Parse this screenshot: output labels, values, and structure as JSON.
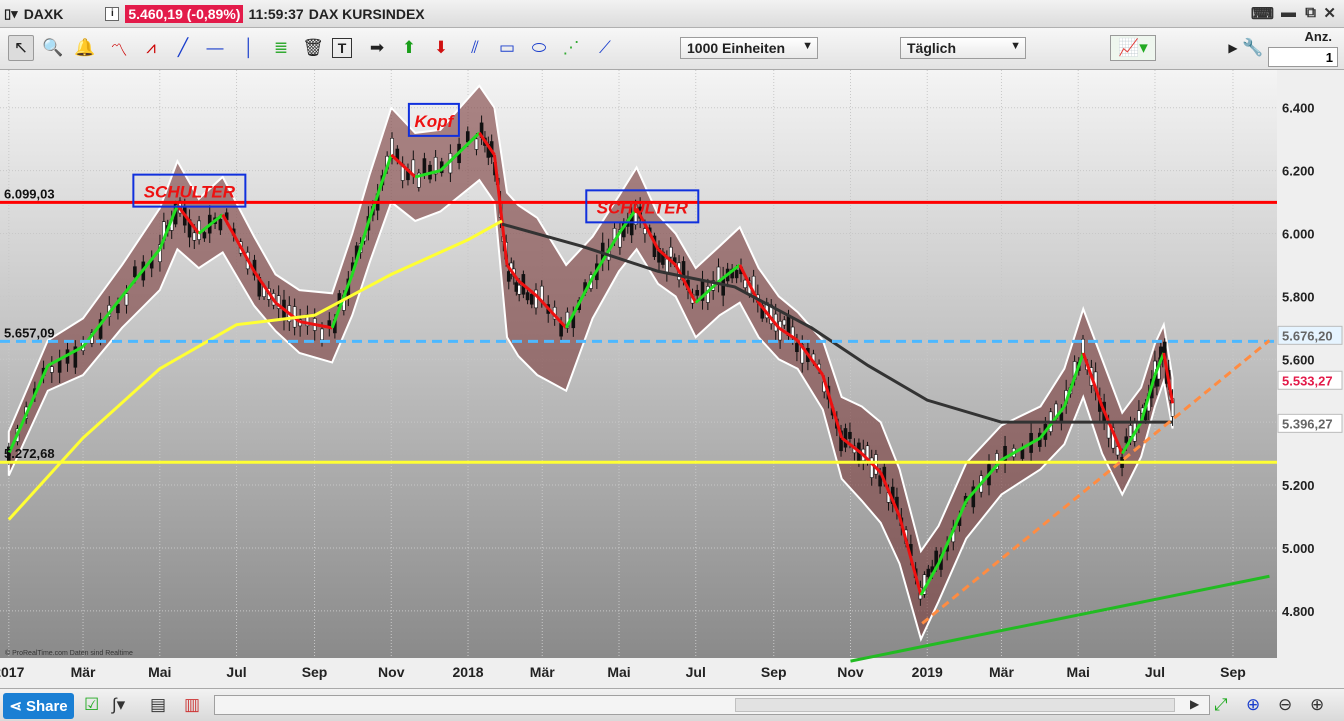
{
  "titlebar": {
    "symbol": "DAXK",
    "info_icon": "i",
    "price_change": "5.460,19 (-0,89%)",
    "time": "11:59:37",
    "name": "DAX KURSINDEX"
  },
  "toolbar": {
    "units_select": "1000 Einheiten",
    "period_select": "Täglich",
    "anz_label": "Anz.",
    "anz_value": "1"
  },
  "bottombar": {
    "share_label": "Share",
    "copyright": "© ProRealTime.com  Daten sind Realtime"
  },
  "colors": {
    "resistance": "#ff0000",
    "support": "#ffff33",
    "neckline": "#4db8ff",
    "trend_green": "#22bb22",
    "trend_orange": "#ff8c42",
    "sma200": "#ffff33",
    "sma_dark": "#333333",
    "band_fill": "#7a3b3b"
  },
  "chart_data": {
    "type": "line",
    "title": "DAX KURSINDEX",
    "x_ticks": [
      "2017",
      "Mär",
      "Mai",
      "Jul",
      "Sep",
      "Nov",
      "2018",
      "Mär",
      "Mai",
      "Jul",
      "Sep",
      "Nov",
      "2019",
      "Mär",
      "Mai",
      "Jul",
      "Sep"
    ],
    "y_ticks": [
      "4.800",
      "5.000",
      "5.200",
      "5.400",
      "5.600",
      "5.800",
      "6.000",
      "6.200",
      "6.400"
    ],
    "ylim": [
      4650,
      6520
    ],
    "grid": true,
    "price_x": [
      "2017-01-01",
      "2017-02-01",
      "2017-03-01",
      "2017-04-01",
      "2017-05-01",
      "2017-05-15",
      "2017-06-01",
      "2017-06-20",
      "2017-07-15",
      "2017-08-01",
      "2017-08-20",
      "2017-09-15",
      "2017-10-01",
      "2017-10-15",
      "2017-11-01",
      "2017-11-20",
      "2017-12-10",
      "2018-01-10",
      "2018-01-22",
      "2018-02-01",
      "2018-02-10",
      "2018-02-25",
      "2018-03-20",
      "2018-04-10",
      "2018-05-01",
      "2018-05-15",
      "2018-06-01",
      "2018-06-15",
      "2018-07-01",
      "2018-07-20",
      "2018-08-05",
      "2018-08-20",
      "2018-09-05",
      "2018-09-20",
      "2018-10-10",
      "2018-10-25",
      "2018-11-10",
      "2018-11-25",
      "2018-12-10",
      "2018-12-27",
      "2019-01-10",
      "2019-02-01",
      "2019-03-01",
      "2019-04-01",
      "2019-04-20",
      "2019-05-05",
      "2019-05-20",
      "2019-06-05",
      "2019-06-20",
      "2019-07-01",
      "2019-07-08",
      "2019-07-15"
    ],
    "price_y": [
      5300,
      5580,
      5640,
      5800,
      5950,
      6090,
      6000,
      6060,
      5880,
      5780,
      5720,
      5700,
      5870,
      6050,
      6250,
      6180,
      6200,
      6320,
      6250,
      5900,
      5850,
      5800,
      5700,
      5860,
      6000,
      6080,
      5950,
      5900,
      5780,
      5850,
      5900,
      5780,
      5700,
      5660,
      5550,
      5350,
      5300,
      5240,
      5100,
      4850,
      4950,
      5150,
      5280,
      5350,
      5450,
      5620,
      5450,
      5300,
      5400,
      5550,
      5620,
      5460
    ],
    "series": [
      {
        "name": "SMA200",
        "x": [
          "2017-01-01",
          "2017-03-01",
          "2017-05-01",
          "2017-07-01",
          "2017-09-01",
          "2017-11-01",
          "2018-01-01",
          "2018-01-28"
        ],
        "y": [
          5090,
          5350,
          5570,
          5710,
          5740,
          5870,
          5980,
          6040
        ]
      },
      {
        "name": "SMA dark",
        "x": [
          "2018-01-28",
          "2018-04-01",
          "2018-06-01",
          "2018-08-01",
          "2018-10-01",
          "2018-11-15",
          "2019-01-01",
          "2019-03-01",
          "2019-05-01",
          "2019-07-15"
        ],
        "y": [
          6030,
          5960,
          5880,
          5830,
          5700,
          5580,
          5470,
          5400,
          5400,
          5400
        ]
      }
    ],
    "hlines": [
      {
        "value": 6099.03,
        "label": "6.099,03"
      },
      {
        "value": 5657.09,
        "label": "5.657,09"
      },
      {
        "value": 5272.68,
        "label": "5.272,68"
      }
    ],
    "value_labels": [
      {
        "value": 5676.2,
        "label": "5.676,20"
      },
      {
        "value": 5533.27,
        "label": "5.533,27"
      },
      {
        "value": 5396.27,
        "label": "5.396,27"
      }
    ],
    "annotations": [
      "SCHULTER",
      "Kopf",
      "SCHULTER"
    ],
    "trendlines": [
      {
        "name": "green",
        "from": [
          "2018-11-01",
          4640
        ],
        "to": [
          "2019-09-30",
          4910
        ]
      },
      {
        "name": "orange dashed",
        "from": [
          "2018-12-28",
          4760
        ],
        "to": [
          "2019-09-30",
          5660
        ]
      }
    ]
  }
}
